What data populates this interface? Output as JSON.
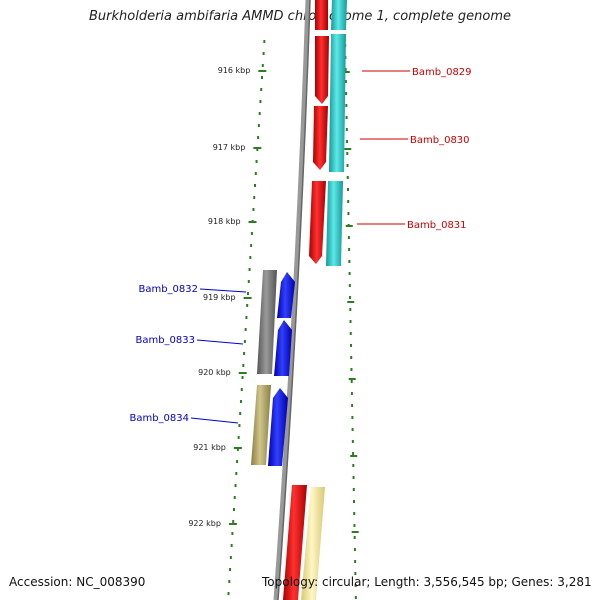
{
  "title": "Burkholderia ambifaria AMMD chromosome 1, complete genome",
  "footer": {
    "accession": "Accession: NC_008390",
    "summary": "Topology: circular; Length: 3,556,545 bp; Genes: 3,281"
  },
  "colors": {
    "forward_gene": "#ee0000",
    "forward_cds": "#22cccc",
    "reverse_gene": "#0000ee",
    "reverse_cds_a": "#777777",
    "reverse_cds_b": "#b5a96a",
    "pale_cds": "#f5e9a0",
    "backbone": "#888888",
    "tick": "#2e7d22",
    "fwd_label": "#cc0000",
    "rev_label": "#0000cc"
  },
  "ticks": [
    {
      "label": "916 kbp"
    },
    {
      "label": "917 kbp"
    },
    {
      "label": "918 kbp"
    },
    {
      "label": "919 kbp"
    },
    {
      "label": "920 kbp"
    },
    {
      "label": "921 kbp"
    },
    {
      "label": "922 kbp"
    }
  ],
  "genes_forward": [
    {
      "name": "Bamb_0829"
    },
    {
      "name": "Bamb_0830"
    },
    {
      "name": "Bamb_0831"
    }
  ],
  "genes_reverse": [
    {
      "name": "Bamb_0832"
    },
    {
      "name": "Bamb_0833"
    },
    {
      "name": "Bamb_0834"
    }
  ]
}
